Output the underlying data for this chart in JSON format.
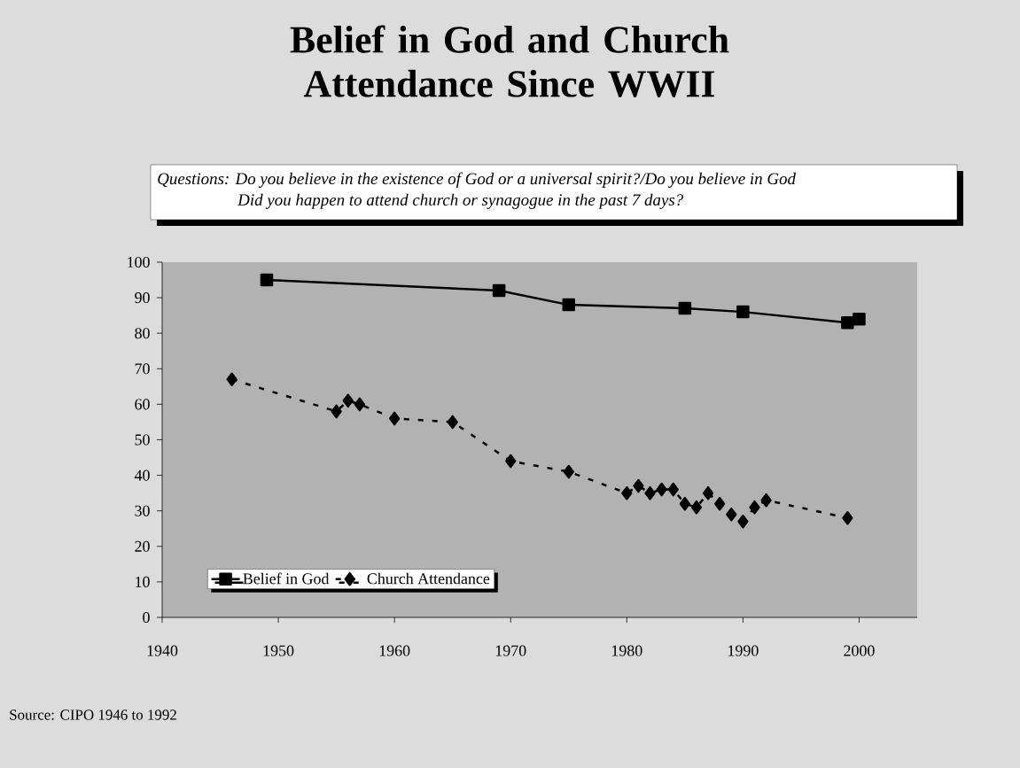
{
  "chart_data": {
    "type": "line",
    "title": "Belief in God and Church Attendance Since WWII",
    "annotations": [
      "Questions: Do you believe in the existence of God or a universal spirit?/Do you believe in God",
      "Did you happen to attend church or synagogue in the past 7 days?",
      "Source: CIPO 1946 to 1992"
    ],
    "xlim": [
      1940,
      2005
    ],
    "xticks": [
      1940,
      1950,
      1960,
      1970,
      1980,
      1990,
      2000
    ],
    "ylim": [
      0,
      100
    ],
    "yticks": [
      0,
      10,
      20,
      30,
      40,
      50,
      60,
      70,
      80,
      90,
      100
    ],
    "grid": false,
    "legend": "bottom left",
    "series": [
      {
        "name": "Belief in God",
        "color": "#000000",
        "marker": "square",
        "line_style": "solid",
        "x": [
          1949,
          1969,
          1975,
          1985,
          1990,
          1999,
          2000
        ],
        "values": [
          95,
          92,
          88,
          87,
          86,
          83,
          84
        ]
      },
      {
        "name": "Church Attendance",
        "color": "#000000",
        "marker": "diamond",
        "line_style": "dashed",
        "x": [
          1946,
          1955,
          1956,
          1957,
          1960,
          1965,
          1970,
          1975,
          1980,
          1981,
          1982,
          1983,
          1984,
          1985,
          1986,
          1987,
          1988,
          1989,
          1990,
          1991,
          1992,
          1999
        ],
        "values": [
          67,
          58,
          61,
          60,
          56,
          55,
          44,
          41,
          35,
          37,
          35,
          36,
          36,
          32,
          31,
          35,
          32,
          29,
          27,
          31,
          33,
          28
        ]
      }
    ]
  }
}
